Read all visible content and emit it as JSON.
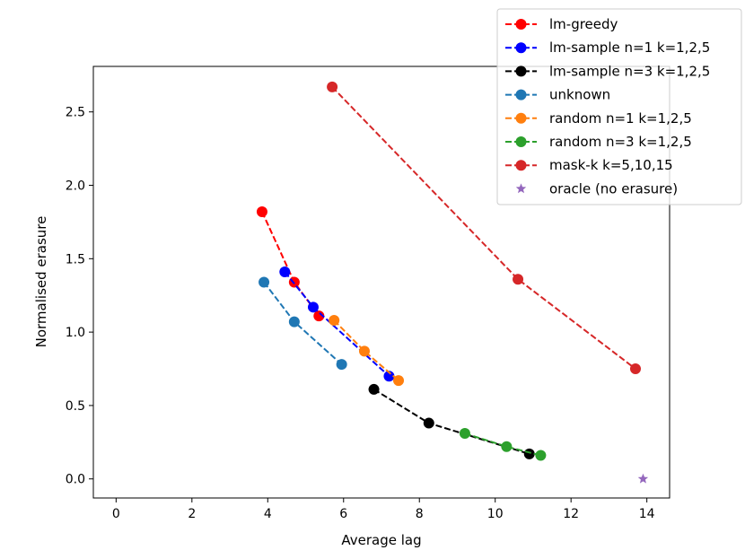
{
  "chart_data": {
    "type": "line",
    "title": "",
    "xlabel": "Average lag",
    "ylabel": "Normalised erasure",
    "xlim": [
      -0.6,
      14.6
    ],
    "ylim": [
      -0.13,
      2.81
    ],
    "xticks": [
      0,
      2,
      4,
      6,
      8,
      10,
      12,
      14
    ],
    "yticks": [
      0.0,
      0.5,
      1.0,
      1.5,
      2.0,
      2.5
    ],
    "legend_position": "top-right",
    "series": [
      {
        "name": "lm-greedy",
        "color": "#ff0000",
        "marker": "circle",
        "linestyle": "dashed",
        "x": [
          3.85,
          4.7,
          5.35
        ],
        "y": [
          1.82,
          1.34,
          1.11
        ]
      },
      {
        "name": "lm-sample n=1 k=1,2,5",
        "color": "#0000ff",
        "marker": "circle",
        "linestyle": "dashed",
        "x": [
          4.45,
          5.2,
          7.2
        ],
        "y": [
          1.41,
          1.17,
          0.7
        ]
      },
      {
        "name": "lm-sample n=3 k=1,2,5",
        "color": "#000000",
        "marker": "circle",
        "linestyle": "dashed",
        "x": [
          6.8,
          8.25,
          10.9
        ],
        "y": [
          0.61,
          0.38,
          0.17
        ]
      },
      {
        "name": "unknown",
        "color": "#1f77b4",
        "marker": "circle",
        "linestyle": "dashed",
        "x": [
          3.9,
          4.7,
          5.95
        ],
        "y": [
          1.34,
          1.07,
          0.78
        ]
      },
      {
        "name": "random n=1 k=1,2,5",
        "color": "#ff7f0e",
        "marker": "circle",
        "linestyle": "dashed",
        "x": [
          5.75,
          6.55,
          7.45
        ],
        "y": [
          1.08,
          0.87,
          0.67
        ]
      },
      {
        "name": "random n=3 k=1,2,5",
        "color": "#2ca02c",
        "marker": "circle",
        "linestyle": "dashed",
        "x": [
          9.2,
          10.3,
          11.2
        ],
        "y": [
          0.31,
          0.22,
          0.16
        ]
      },
      {
        "name": "mask-k k=5,10,15",
        "color": "#d62728",
        "marker": "circle",
        "linestyle": "dashed",
        "x": [
          5.7,
          10.6,
          13.7
        ],
        "y": [
          2.67,
          1.36,
          0.75
        ]
      },
      {
        "name": "oracle (no erasure)",
        "color": "#9467bd",
        "marker": "star",
        "linestyle": "none",
        "x": [
          13.9
        ],
        "y": [
          0.0
        ]
      }
    ]
  }
}
